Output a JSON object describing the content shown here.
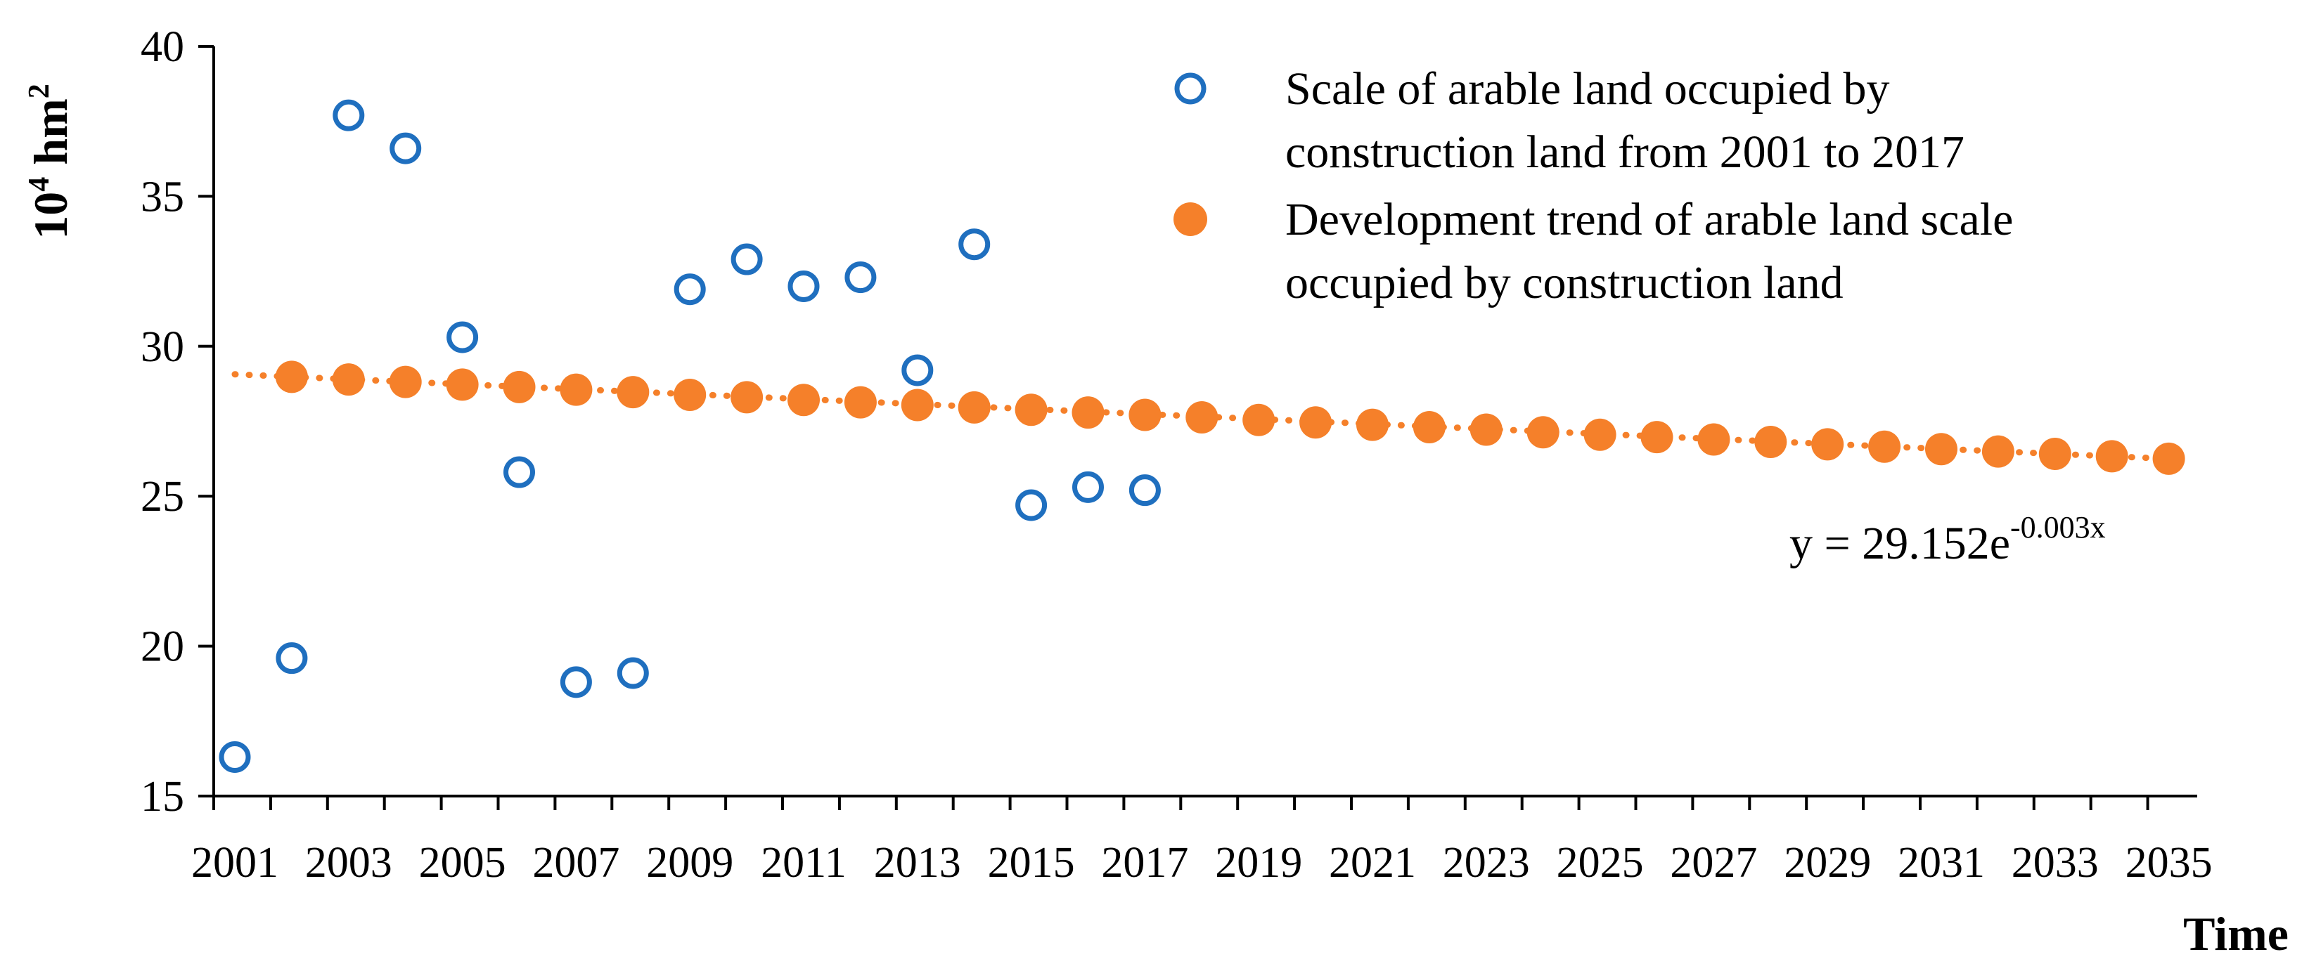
{
  "chart_data": {
    "type": "scatter",
    "title": "",
    "xlabel": "Time",
    "ylabel": "10⁴ hm²",
    "ylim": [
      15,
      40
    ],
    "xlim": [
      2001,
      2035
    ],
    "yticks": [
      15,
      20,
      25,
      30,
      35,
      40
    ],
    "xticks": [
      2001,
      2003,
      2005,
      2007,
      2009,
      2011,
      2013,
      2015,
      2017,
      2019,
      2021,
      2023,
      2025,
      2027,
      2029,
      2031,
      2033,
      2035
    ],
    "grid": false,
    "legend_position": "top-right",
    "series": [
      {
        "name": "Scale of arable land occupied by construction land from 2001 to 2017",
        "legend_lines": [
          "Scale of arable land occupied by",
          "construction land from 2001 to 2017"
        ],
        "marker": "hollow-circle",
        "color": "#1f6fbf",
        "x": [
          2001,
          2002,
          2003,
          2004,
          2005,
          2006,
          2007,
          2008,
          2009,
          2010,
          2011,
          2012,
          2013,
          2014,
          2015,
          2016,
          2017
        ],
        "values": [
          16.3,
          19.6,
          37.7,
          36.6,
          30.3,
          25.8,
          18.8,
          19.1,
          31.9,
          32.9,
          32.0,
          32.3,
          29.2,
          33.4,
          24.7,
          25.3,
          25.2
        ]
      },
      {
        "name": "Development trend of arable land scale occupied by construction land",
        "legend_lines": [
          "Development trend of arable land scale",
          "occupied by construction land"
        ],
        "marker": "filled-circle",
        "color": "#f5802a",
        "x": [
          2002,
          2003,
          2004,
          2005,
          2006,
          2007,
          2008,
          2009,
          2010,
          2011,
          2012,
          2013,
          2014,
          2015,
          2016,
          2017,
          2018,
          2019,
          2020,
          2021,
          2022,
          2023,
          2024,
          2025,
          2026,
          2027,
          2028,
          2029,
          2030,
          2031,
          2032,
          2033,
          2034,
          2035
        ],
        "values": [
          28.98,
          28.89,
          28.81,
          28.72,
          28.64,
          28.55,
          28.47,
          28.38,
          28.3,
          28.21,
          28.13,
          28.04,
          27.96,
          27.88,
          27.79,
          27.71,
          27.63,
          27.54,
          27.46,
          27.38,
          27.3,
          27.22,
          27.13,
          27.05,
          26.97,
          26.89,
          26.81,
          26.73,
          26.65,
          26.57,
          26.49,
          26.41,
          26.33,
          26.25
        ]
      }
    ],
    "trendline": {
      "color": "#f5802a",
      "style": "dotted",
      "x_start": 2001,
      "x_end": 2035,
      "a": 29.152,
      "b": -0.003
    },
    "annotations": {
      "equation_base": "y = 29.152e",
      "equation_exponent": "-0.003x"
    }
  }
}
